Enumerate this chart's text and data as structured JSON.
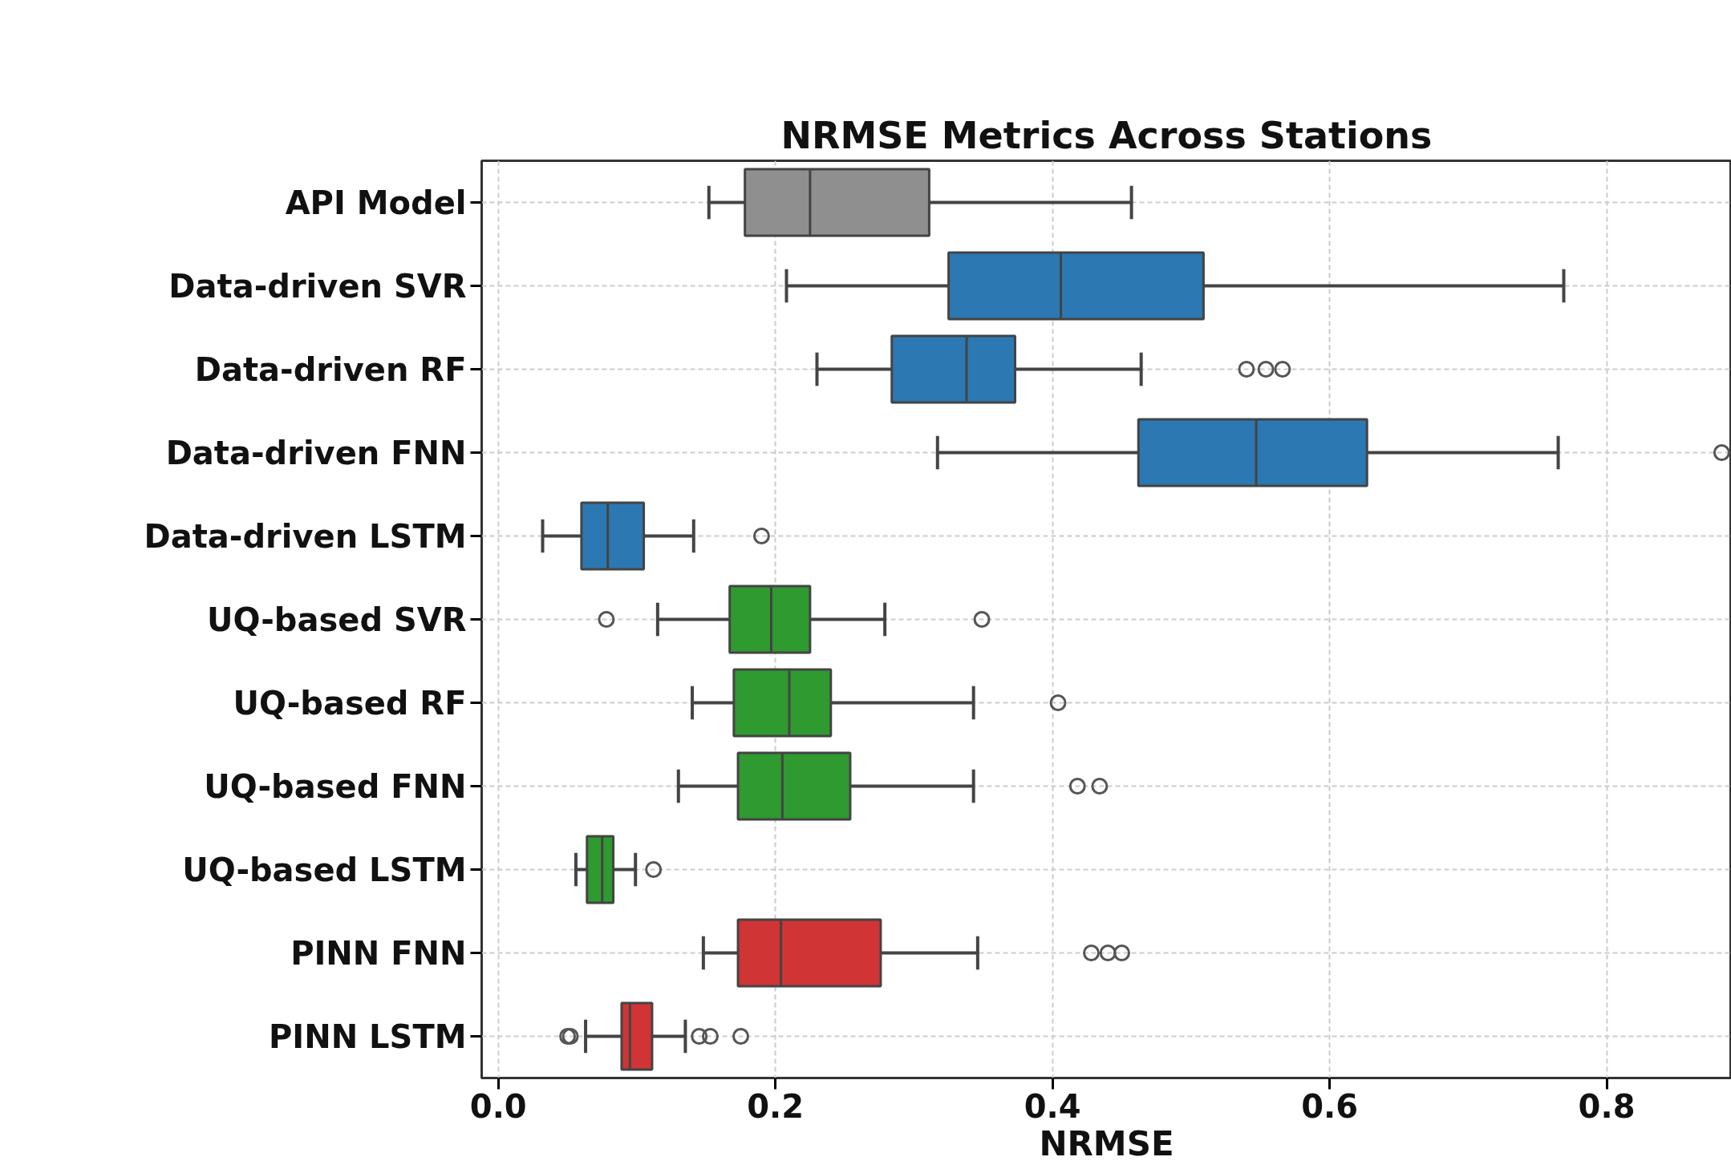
{
  "chart_data": {
    "type": "box",
    "orientation": "horizontal",
    "title": "NRMSE Metrics Across Stations",
    "xlabel": "NRMSE",
    "categories": [
      "API Model",
      "Data-driven SVR",
      "Data-driven RF",
      "Data-driven FNN",
      "Data-driven LSTM",
      "UQ-based SVR",
      "UQ-based RF",
      "UQ-based FNN",
      "UQ-based LSTM",
      "PINN FNN",
      "PINN LSTM"
    ],
    "colors": [
      "#8f8f8f",
      "#2b78b2",
      "#2b78b2",
      "#2b78b2",
      "#2b78b2",
      "#2f9a2f",
      "#2f9a2f",
      "#2f9a2f",
      "#2f9a2f",
      "#d13434",
      "#d13434"
    ],
    "boxes": [
      {
        "low": 0.152,
        "q1": 0.178,
        "median": 0.225,
        "q3": 0.311,
        "high": 0.457
      },
      {
        "low": 0.208,
        "q1": 0.325,
        "median": 0.406,
        "q3": 0.509,
        "high": 0.769
      },
      {
        "low": 0.23,
        "q1": 0.284,
        "median": 0.338,
        "q3": 0.373,
        "high": 0.464,
        "outliers": [
          0.54,
          0.554,
          0.566
        ]
      },
      {
        "low": 0.317,
        "q1": 0.462,
        "median": 0.547,
        "q3": 0.627,
        "high": 0.765,
        "outliers": [
          0.883
        ]
      },
      {
        "low": 0.032,
        "q1": 0.06,
        "median": 0.079,
        "q3": 0.105,
        "high": 0.141,
        "outliers": [
          0.19
        ]
      },
      {
        "low": 0.115,
        "q1": 0.167,
        "median": 0.197,
        "q3": 0.225,
        "high": 0.279,
        "outliers": [
          0.078,
          0.349
        ]
      },
      {
        "low": 0.14,
        "q1": 0.17,
        "median": 0.21,
        "q3": 0.24,
        "high": 0.343,
        "outliers": [
          0.404
        ]
      },
      {
        "low": 0.13,
        "q1": 0.173,
        "median": 0.205,
        "q3": 0.254,
        "high": 0.343,
        "outliers": [
          0.418,
          0.434
        ]
      },
      {
        "low": 0.056,
        "q1": 0.064,
        "median": 0.075,
        "q3": 0.083,
        "high": 0.099,
        "outliers": [
          0.112
        ]
      },
      {
        "low": 0.148,
        "q1": 0.173,
        "median": 0.204,
        "q3": 0.276,
        "high": 0.346,
        "outliers": [
          0.428,
          0.44,
          0.45
        ]
      },
      {
        "low": 0.063,
        "q1": 0.089,
        "median": 0.095,
        "q3": 0.111,
        "high": 0.135,
        "outliers": [
          0.05,
          0.052,
          0.145,
          0.153,
          0.175
        ]
      }
    ],
    "xlim": [
      -0.012,
      0.89
    ],
    "xticks": [
      {
        "value": 0,
        "label": "0.0"
      },
      {
        "value": 0.2,
        "label": "0.2"
      },
      {
        "value": 0.4,
        "label": "0.4"
      },
      {
        "value": 0.6,
        "label": "0.6"
      },
      {
        "value": 0.8,
        "label": "0.8"
      }
    ],
    "grid": true
  }
}
